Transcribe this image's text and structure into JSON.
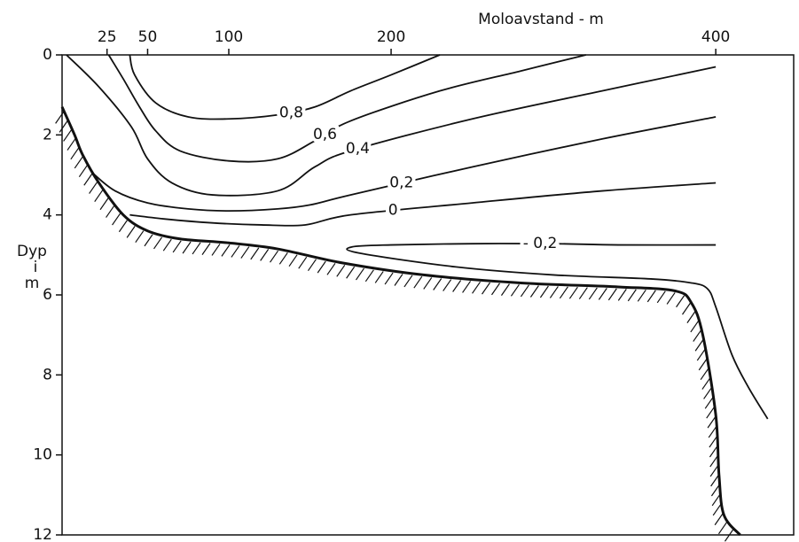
{
  "chart_data": {
    "type": "contour",
    "xlabel": "Moloavstand - m",
    "ylabel": [
      "Dyp",
      "i",
      "m"
    ],
    "xlim": [
      -2.7,
      448
    ],
    "xticks": [
      25,
      50,
      100,
      200,
      400
    ],
    "ylim": [
      0,
      12
    ],
    "yticks": [
      0,
      2,
      4,
      6,
      8,
      10,
      12
    ],
    "y_inverted": true,
    "color": "#111111",
    "contours": [
      {
        "label": "0,8",
        "x": [
          39,
          42,
          55,
          75,
          100,
          130,
          153,
          175,
          200,
          230
        ],
        "y": [
          0,
          0.5,
          1.2,
          1.55,
          1.6,
          1.5,
          1.3,
          0.9,
          0.5,
          0
        ]
      },
      {
        "label": "0,6",
        "x": [
          26,
          35,
          45,
          55,
          70,
          100,
          130,
          153,
          175,
          230,
          280,
          320
        ],
        "y": [
          0,
          0.6,
          1.3,
          1.9,
          2.4,
          2.65,
          2.6,
          2.15,
          1.65,
          0.9,
          0.4,
          0
        ]
      },
      {
        "label": "0,4",
        "x": [
          0,
          20,
          40,
          50,
          65,
          90,
          130,
          153,
          175,
          250,
          330,
          400
        ],
        "y": [
          0,
          0.8,
          1.8,
          2.6,
          3.2,
          3.5,
          3.4,
          2.8,
          2.4,
          1.6,
          0.9,
          0.3
        ]
      },
      {
        "label": "0,2",
        "x": [
          16,
          30,
          50,
          75,
          100,
          130,
          150,
          175,
          250,
          330,
          400
        ],
        "y": [
          2.95,
          3.4,
          3.7,
          3.85,
          3.9,
          3.85,
          3.75,
          3.5,
          2.8,
          2.1,
          1.55
        ]
      },
      {
        "label": "0",
        "x": [
          39,
          60,
          90,
          120,
          147,
          175,
          250,
          330,
          400
        ],
        "y": [
          4.0,
          4.1,
          4.2,
          4.25,
          4.25,
          4.0,
          3.7,
          3.4,
          3.2
        ]
      },
      {
        "label": "- 0,2",
        "x": [
          400,
          340,
          300,
          250,
          200,
          176,
          180,
          240,
          300,
          360,
          385,
          395,
          400,
          410,
          420,
          432
        ],
        "y": [
          4.75,
          4.75,
          4.72,
          4.72,
          4.75,
          4.8,
          4.95,
          5.3,
          5.5,
          5.6,
          5.7,
          5.85,
          6.3,
          7.5,
          8.3,
          9.1
        ]
      }
    ],
    "bed": {
      "x": [
        -2.7,
        5,
        10,
        20,
        35,
        50,
        70,
        100,
        130,
        170,
        220,
        280,
        340,
        375,
        385,
        392,
        400,
        402,
        405,
        415
      ],
      "y": [
        1.3,
        2.0,
        2.5,
        3.2,
        4.0,
        4.4,
        4.6,
        4.7,
        4.85,
        5.2,
        5.5,
        5.7,
        5.8,
        5.9,
        6.2,
        7.0,
        9.0,
        10.5,
        11.5,
        12
      ]
    }
  }
}
